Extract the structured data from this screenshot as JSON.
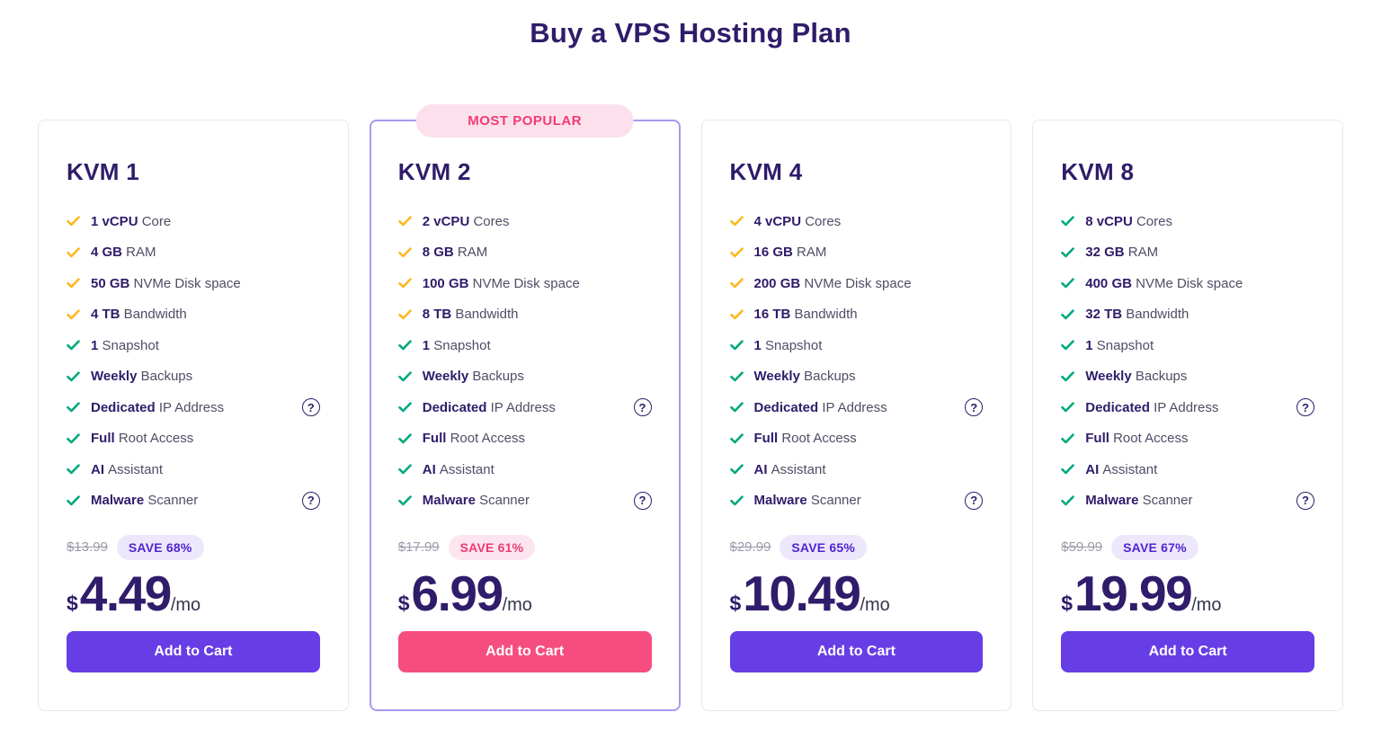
{
  "page": {
    "title": "Buy a VPS Hosting Plan"
  },
  "labels": {
    "most_popular": "MOST POPULAR",
    "add_to_cart": "Add to Cart",
    "currency": "$",
    "period": "/mo"
  },
  "icons": {
    "help_glyph": "?"
  },
  "colors": {
    "navy": "#2F1C6A",
    "purple_accent": "#673DE6",
    "pink_accent": "#F64D80",
    "yellow_check": "#FDB81E",
    "green_check": "#00A87E",
    "popular_border": "#A29BF2",
    "save_purple_bg": "#EDE7FB",
    "save_purple_text": "#5025D1",
    "save_pink_bg": "#FDE5EF",
    "save_pink_text": "#EC3A74"
  },
  "plans": [
    {
      "name": "KVM 1",
      "most_popular": false,
      "accent": "purple",
      "features": [
        {
          "highlight": "1 vCPU",
          "text": "Core",
          "check": "yellow",
          "help": false
        },
        {
          "highlight": "4 GB",
          "text": "RAM",
          "check": "yellow",
          "help": false
        },
        {
          "highlight": "50 GB",
          "text": "NVMe Disk space",
          "check": "yellow",
          "help": false
        },
        {
          "highlight": "4 TB",
          "text": "Bandwidth",
          "check": "yellow",
          "help": false
        },
        {
          "highlight": "1",
          "text": "Snapshot",
          "check": "green",
          "help": false
        },
        {
          "highlight": "Weekly",
          "text": "Backups",
          "check": "green",
          "help": false
        },
        {
          "highlight": "Dedicated",
          "text": "IP Address",
          "check": "green",
          "help": true
        },
        {
          "highlight": "Full",
          "text": "Root Access",
          "check": "green",
          "help": false
        },
        {
          "highlight": "AI",
          "text": "Assistant",
          "check": "green",
          "help": false
        },
        {
          "highlight": "Malware",
          "text": "Scanner",
          "check": "green",
          "help": true
        }
      ],
      "old_price": "$13.99",
      "save_label": "SAVE 68%",
      "price": "4.49"
    },
    {
      "name": "KVM 2",
      "most_popular": true,
      "accent": "pink",
      "features": [
        {
          "highlight": "2 vCPU",
          "text": "Cores",
          "check": "yellow",
          "help": false
        },
        {
          "highlight": "8 GB",
          "text": "RAM",
          "check": "yellow",
          "help": false
        },
        {
          "highlight": "100 GB",
          "text": "NVMe Disk space",
          "check": "yellow",
          "help": false
        },
        {
          "highlight": "8 TB",
          "text": "Bandwidth",
          "check": "yellow",
          "help": false
        },
        {
          "highlight": "1",
          "text": "Snapshot",
          "check": "green",
          "help": false
        },
        {
          "highlight": "Weekly",
          "text": "Backups",
          "check": "green",
          "help": false
        },
        {
          "highlight": "Dedicated",
          "text": "IP Address",
          "check": "green",
          "help": true
        },
        {
          "highlight": "Full",
          "text": "Root Access",
          "check": "green",
          "help": false
        },
        {
          "highlight": "AI",
          "text": "Assistant",
          "check": "green",
          "help": false
        },
        {
          "highlight": "Malware",
          "text": "Scanner",
          "check": "green",
          "help": true
        }
      ],
      "old_price": "$17.99",
      "save_label": "SAVE 61%",
      "price": "6.99"
    },
    {
      "name": "KVM 4",
      "most_popular": false,
      "accent": "purple",
      "features": [
        {
          "highlight": "4 vCPU",
          "text": "Cores",
          "check": "yellow",
          "help": false
        },
        {
          "highlight": "16 GB",
          "text": "RAM",
          "check": "yellow",
          "help": false
        },
        {
          "highlight": "200 GB",
          "text": "NVMe Disk space",
          "check": "yellow",
          "help": false
        },
        {
          "highlight": "16 TB",
          "text": "Bandwidth",
          "check": "yellow",
          "help": false
        },
        {
          "highlight": "1",
          "text": "Snapshot",
          "check": "green",
          "help": false
        },
        {
          "highlight": "Weekly",
          "text": "Backups",
          "check": "green",
          "help": false
        },
        {
          "highlight": "Dedicated",
          "text": "IP Address",
          "check": "green",
          "help": true
        },
        {
          "highlight": "Full",
          "text": "Root Access",
          "check": "green",
          "help": false
        },
        {
          "highlight": "AI",
          "text": "Assistant",
          "check": "green",
          "help": false
        },
        {
          "highlight": "Malware",
          "text": "Scanner",
          "check": "green",
          "help": true
        }
      ],
      "old_price": "$29.99",
      "save_label": "SAVE 65%",
      "price": "10.49"
    },
    {
      "name": "KVM 8",
      "most_popular": false,
      "accent": "purple",
      "features": [
        {
          "highlight": "8 vCPU",
          "text": "Cores",
          "check": "green",
          "help": false
        },
        {
          "highlight": "32 GB",
          "text": "RAM",
          "check": "green",
          "help": false
        },
        {
          "highlight": "400 GB",
          "text": "NVMe Disk space",
          "check": "green",
          "help": false
        },
        {
          "highlight": "32 TB",
          "text": "Bandwidth",
          "check": "green",
          "help": false
        },
        {
          "highlight": "1",
          "text": "Snapshot",
          "check": "green",
          "help": false
        },
        {
          "highlight": "Weekly",
          "text": "Backups",
          "check": "green",
          "help": false
        },
        {
          "highlight": "Dedicated",
          "text": "IP Address",
          "check": "green",
          "help": true
        },
        {
          "highlight": "Full",
          "text": "Root Access",
          "check": "green",
          "help": false
        },
        {
          "highlight": "AI",
          "text": "Assistant",
          "check": "green",
          "help": false
        },
        {
          "highlight": "Malware",
          "text": "Scanner",
          "check": "green",
          "help": true
        }
      ],
      "old_price": "$59.99",
      "save_label": "SAVE 67%",
      "price": "19.99"
    }
  ]
}
